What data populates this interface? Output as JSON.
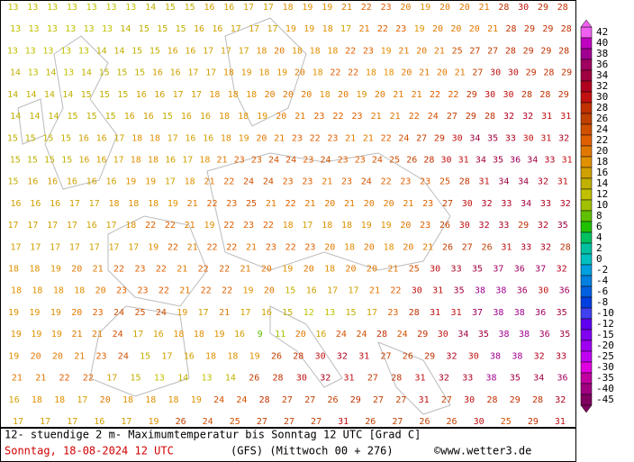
{
  "map": {
    "rows": [
      [
        13,
        13,
        13,
        13,
        13,
        13,
        13,
        14,
        15,
        15,
        16,
        16,
        17,
        17,
        18,
        19,
        19,
        21,
        22,
        23,
        20,
        19,
        20,
        20,
        21,
        28,
        30,
        29,
        28
      ],
      [
        13,
        13,
        13,
        13,
        13,
        13,
        14,
        15,
        15,
        15,
        16,
        16,
        17,
        17,
        17,
        19,
        19,
        18,
        17,
        21,
        22,
        23,
        19,
        20,
        20,
        20,
        21,
        28,
        29,
        29,
        28
      ],
      [
        13,
        13,
        13,
        13,
        13,
        14,
        14,
        15,
        15,
        16,
        16,
        17,
        17,
        17,
        18,
        20,
        18,
        18,
        18,
        22,
        23,
        19,
        21,
        20,
        21,
        25,
        27,
        27,
        28,
        29,
        29,
        28
      ],
      [
        14,
        13,
        14,
        13,
        14,
        15,
        15,
        15,
        16,
        16,
        17,
        17,
        18,
        19,
        18,
        19,
        20,
        18,
        22,
        22,
        18,
        18,
        20,
        21,
        20,
        21,
        27,
        30,
        30,
        29,
        28,
        29
      ],
      [
        14,
        14,
        14,
        14,
        15,
        15,
        15,
        16,
        16,
        17,
        17,
        18,
        18,
        18,
        20,
        20,
        20,
        18,
        20,
        19,
        20,
        21,
        21,
        22,
        22,
        29,
        30,
        30,
        28,
        28,
        29
      ],
      [
        14,
        14,
        14,
        15,
        15,
        15,
        16,
        16,
        15,
        16,
        16,
        18,
        18,
        19,
        20,
        21,
        23,
        22,
        23,
        21,
        21,
        22,
        24,
        27,
        29,
        28,
        32,
        32,
        31,
        31
      ],
      [
        15,
        15,
        15,
        15,
        16,
        16,
        17,
        18,
        18,
        17,
        16,
        16,
        18,
        19,
        20,
        21,
        23,
        22,
        23,
        21,
        21,
        22,
        24,
        27,
        29,
        30,
        34,
        35,
        33,
        30,
        31,
        32
      ],
      [
        15,
        15,
        15,
        15,
        16,
        16,
        17,
        18,
        18,
        16,
        17,
        18,
        21,
        23,
        23,
        24,
        24,
        23,
        24,
        23,
        23,
        24,
        25,
        26,
        28,
        30,
        31,
        34,
        35,
        36,
        34,
        33,
        31
      ],
      [
        15,
        16,
        16,
        16,
        16,
        16,
        19,
        19,
        17,
        18,
        21,
        22,
        24,
        24,
        23,
        23,
        21,
        23,
        24,
        22,
        23,
        23,
        25,
        28,
        31,
        34,
        34,
        32,
        31
      ],
      [
        16,
        16,
        16,
        17,
        17,
        18,
        18,
        18,
        19,
        21,
        22,
        23,
        25,
        21,
        22,
        21,
        20,
        21,
        20,
        20,
        21,
        23,
        27,
        30,
        32,
        33,
        34,
        33,
        32
      ],
      [
        17,
        17,
        17,
        17,
        16,
        17,
        18,
        22,
        22,
        21,
        19,
        22,
        23,
        22,
        18,
        17,
        18,
        18,
        19,
        19,
        20,
        23,
        26,
        30,
        32,
        33,
        29,
        32,
        35
      ],
      [
        17,
        17,
        17,
        17,
        17,
        17,
        17,
        19,
        22,
        21,
        22,
        22,
        21,
        23,
        22,
        23,
        20,
        18,
        20,
        18,
        20,
        21,
        26,
        27,
        26,
        31,
        33,
        32,
        28
      ],
      [
        18,
        18,
        19,
        20,
        21,
        22,
        23,
        22,
        21,
        22,
        22,
        21,
        20,
        19,
        20,
        18,
        20,
        20,
        21,
        25,
        30,
        33,
        35,
        37,
        36,
        37,
        32
      ],
      [
        18,
        18,
        18,
        18,
        20,
        23,
        23,
        22,
        21,
        22,
        22,
        19,
        20,
        15,
        16,
        17,
        17,
        21,
        22,
        30,
        31,
        35,
        38,
        38,
        36,
        30,
        36
      ],
      [
        19,
        19,
        19,
        20,
        23,
        24,
        25,
        24,
        19,
        17,
        21,
        17,
        16,
        15,
        12,
        13,
        15,
        17,
        23,
        28,
        31,
        31,
        37,
        38,
        38,
        36,
        35
      ],
      [
        19,
        19,
        19,
        21,
        21,
        24,
        17,
        16,
        18,
        18,
        19,
        16,
        9,
        11,
        20,
        16,
        24,
        24,
        28,
        24,
        29,
        30,
        34,
        35,
        38,
        38,
        36,
        35
      ],
      [
        19,
        20,
        20,
        21,
        23,
        24,
        15,
        17,
        16,
        18,
        18,
        19,
        26,
        28,
        30,
        32,
        31,
        27,
        26,
        29,
        32,
        30,
        38,
        38,
        32,
        33
      ],
      [
        21,
        21,
        22,
        22,
        17,
        15,
        13,
        14,
        13,
        14,
        26,
        28,
        30,
        32,
        31,
        27,
        28,
        31,
        32,
        33,
        38,
        35,
        34,
        36
      ],
      [
        16,
        18,
        18,
        17,
        20,
        18,
        18,
        18,
        19,
        24,
        24,
        28,
        27,
        27,
        26,
        29,
        27,
        27,
        31,
        27,
        30,
        28,
        29,
        28,
        32
      ],
      [
        17,
        17,
        17,
        16,
        17,
        19,
        26,
        24,
        25,
        27,
        27,
        27,
        31,
        26,
        27,
        26,
        26,
        30,
        25,
        29,
        31
      ]
    ]
  },
  "legend": {
    "labels": [
      42,
      40,
      38,
      36,
      34,
      32,
      30,
      28,
      26,
      24,
      22,
      20,
      18,
      16,
      14,
      12,
      10,
      8,
      6,
      4,
      2,
      0,
      -2,
      -4,
      -6,
      -8,
      -10,
      -12,
      -15,
      -20,
      -25,
      -30,
      -35,
      -40,
      -45
    ],
    "colors": [
      "#f060f0",
      "#c000c0",
      "#a00090",
      "#a00060",
      "#a00040",
      "#b00020",
      "#c01010",
      "#c03000",
      "#c04000",
      "#d05000",
      "#e06000",
      "#e07800",
      "#e09000",
      "#d0a000",
      "#c0b000",
      "#c0c000",
      "#a0c000",
      "#60c000",
      "#20c000",
      "#00c060",
      "#00c0a0",
      "#00c0c0",
      "#00a0e0",
      "#0080e0",
      "#0060e0",
      "#0040e0",
      "#4040f0",
      "#6000f0",
      "#8000f0",
      "#a000f0",
      "#c000f0",
      "#e000e0",
      "#c000a0",
      "#a00080",
      "#800060"
    ]
  },
  "footer": {
    "title": "12- stuendige 2 m- Maximumtemperatur bis Sonntag 12 UTC [Grad C]",
    "date": "Sonntag, 18-08-2024  12 UTC",
    "model": "(GFS)  (Mittwoch 00 + 276)",
    "credit": "©www.wetter3.de"
  }
}
